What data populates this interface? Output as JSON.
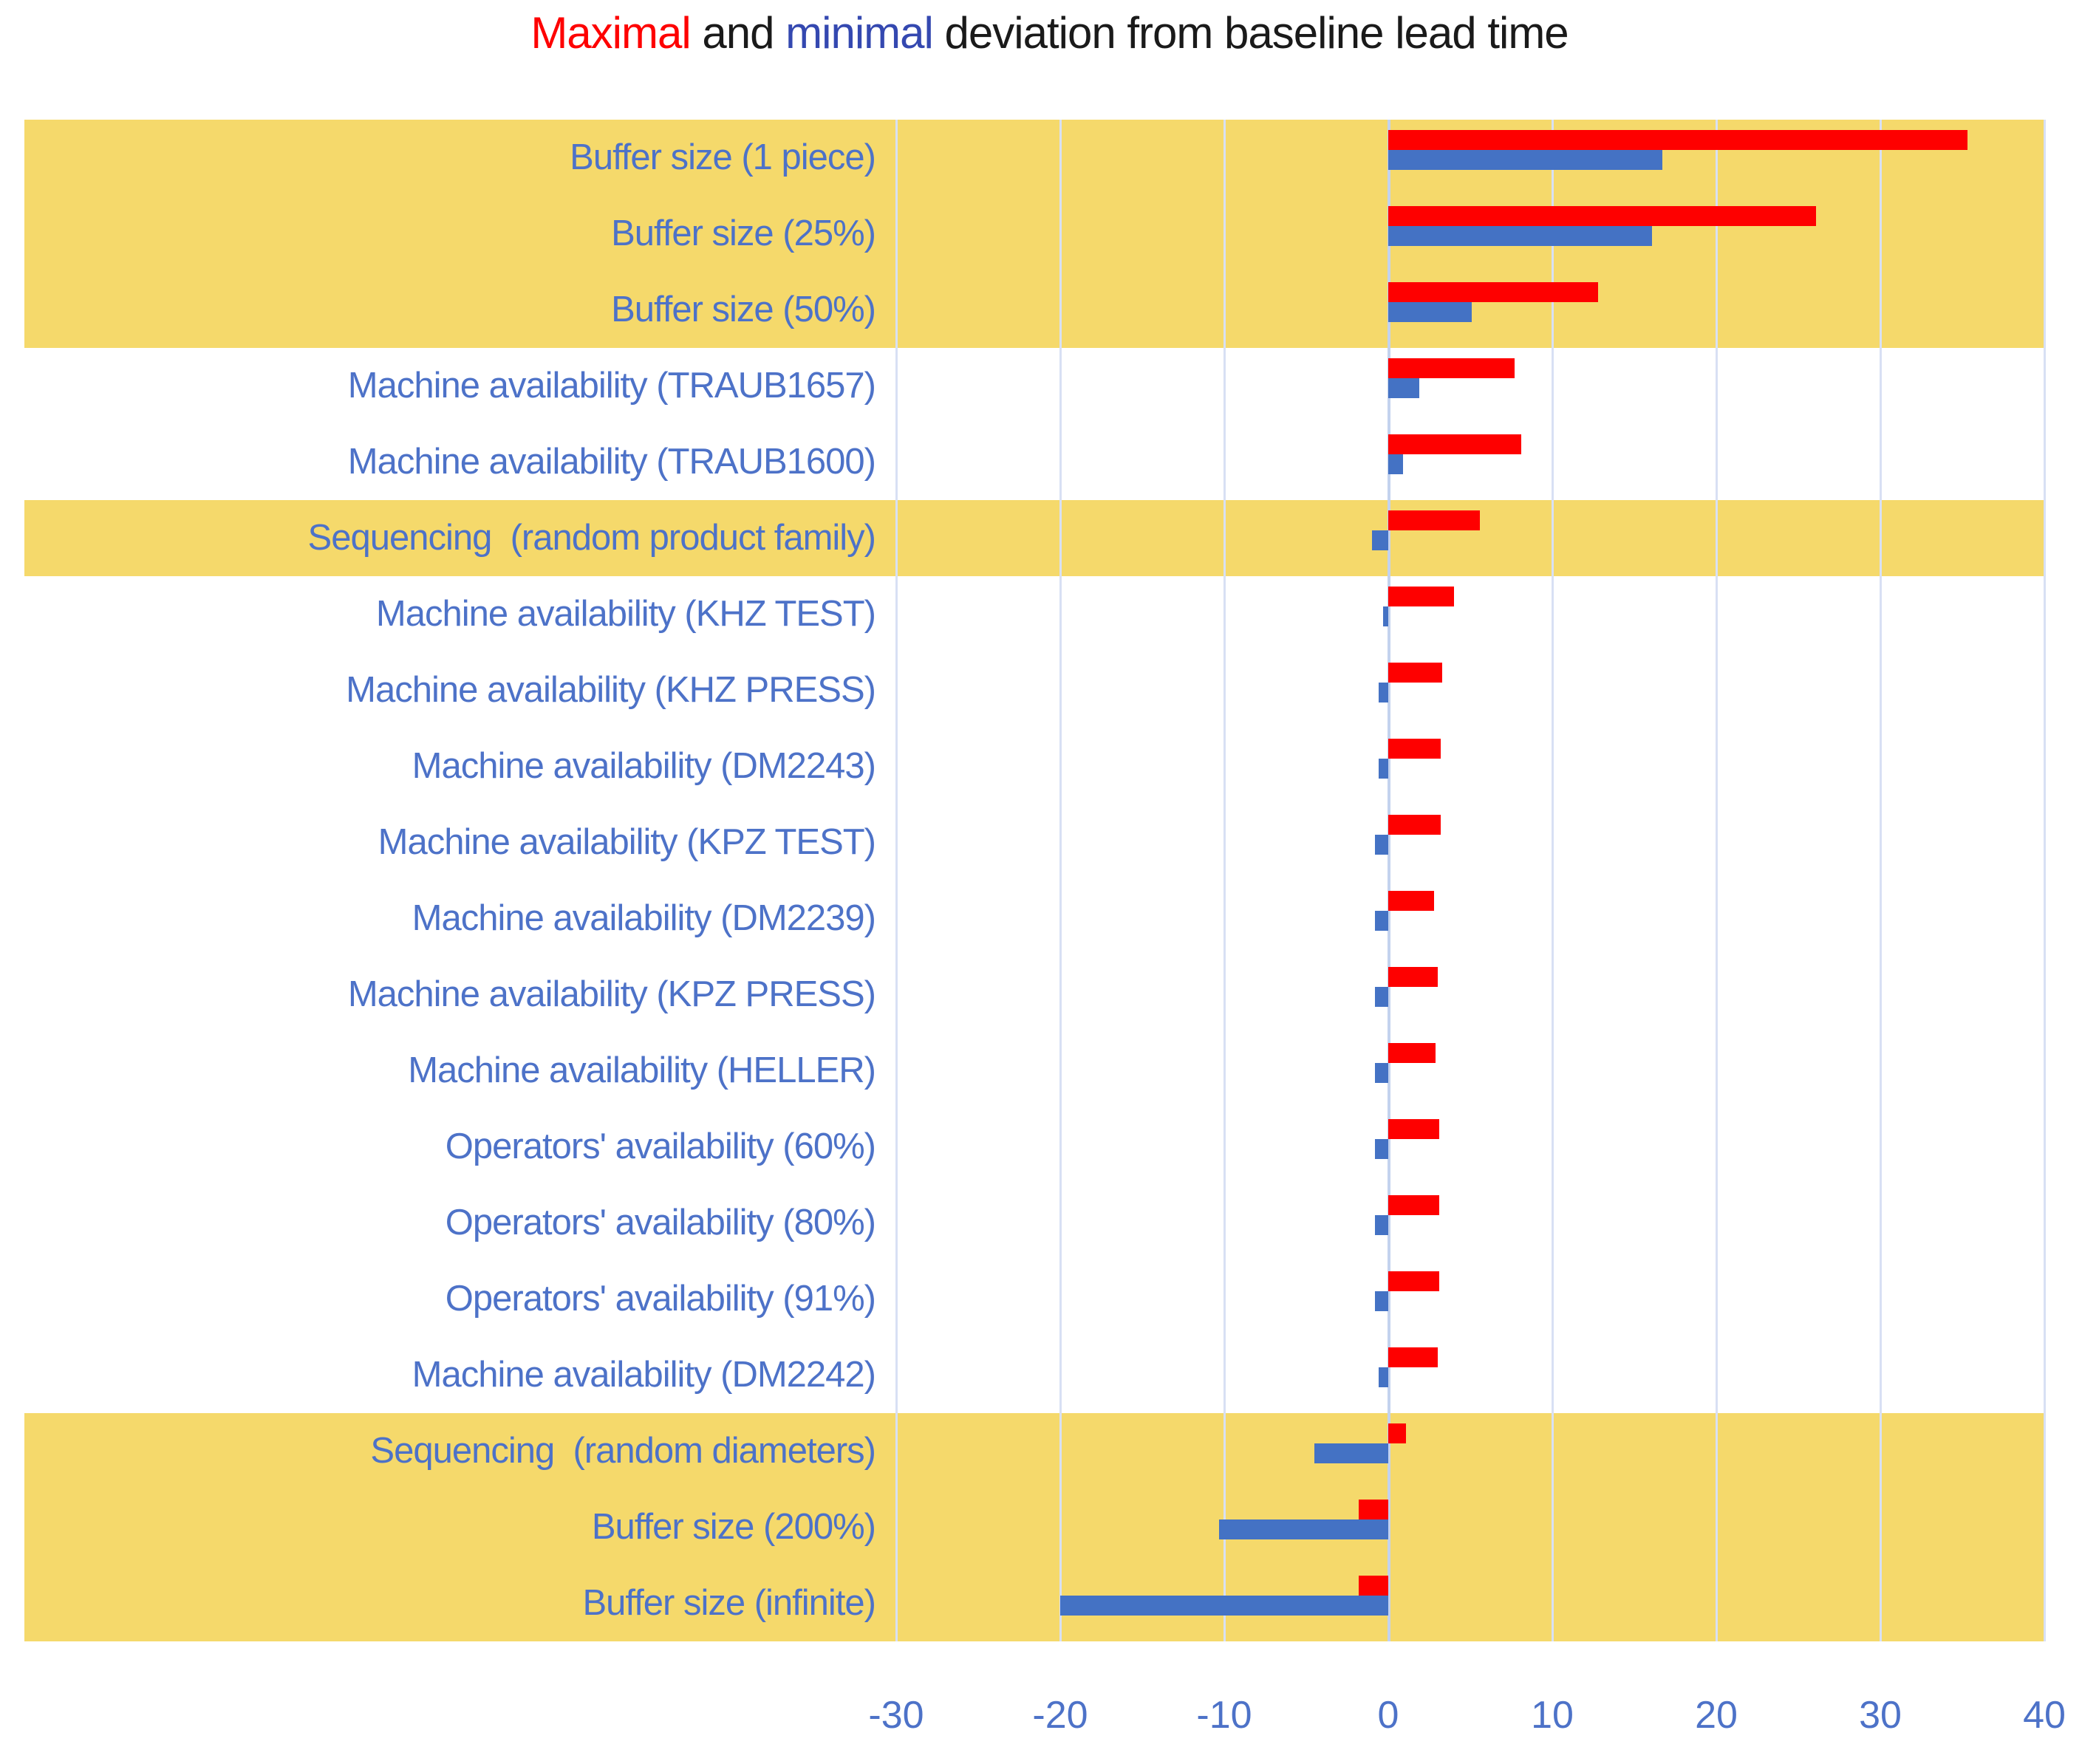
{
  "title": {
    "parts": [
      {
        "text": "Maximal",
        "color": "#fe0000"
      },
      {
        "text": " and ",
        "color": "#1a1a1a"
      },
      {
        "text": "minimal",
        "color": "#3448b0"
      },
      {
        "text": " deviation from baseline lead time",
        "color": "#1a1a1a"
      }
    ]
  },
  "colors": {
    "max_bar": "#fe0000",
    "min_bar": "#4472c4",
    "highlight_band": "#f5d96b",
    "gridline": "#d8e0f4",
    "zero_line": "#c3d2ee",
    "label_text": "#4d72c8",
    "tick_text": "#4d72c8"
  },
  "chart_data": {
    "type": "bar",
    "orientation": "horizontal",
    "title": "Maximal and minimal deviation from baseline lead time",
    "xlabel": "",
    "ylabel": "",
    "xlim": [
      -30,
      40
    ],
    "x_ticks": [
      -30,
      -20,
      -10,
      0,
      10,
      20,
      30,
      40
    ],
    "grid": "vertical",
    "legend": "encoded in title word colors (Maximal=red, minimal=blue)",
    "categories": [
      "Buffer size (1 piece)",
      "Buffer size (25%)",
      "Buffer size (50%)",
      "Machine availability (TRAUB1657)",
      "Machine availability (TRAUB1600)",
      "Sequencing  (random product family)",
      "Machine availability (KHZ TEST)",
      "Machine availability (KHZ PRESS)",
      "Machine availability (DM2243)",
      "Machine availability (KPZ TEST)",
      "Machine availability (DM2239)",
      "Machine availability (KPZ PRESS)",
      "Machine availability (HELLER)",
      "Operators' availability (60%)",
      "Operators' availability (80%)",
      "Operators' availability (91%)",
      "Machine availability (DM2242)",
      "Sequencing  (random diameters)",
      "Buffer size (200%)",
      "Buffer size (infinite)"
    ],
    "series": [
      {
        "name": "Maximal deviation",
        "color": "#fe0000",
        "values": [
          35.3,
          26.1,
          12.8,
          7.7,
          8.1,
          5.6,
          4.0,
          3.3,
          3.2,
          3.2,
          2.8,
          3.0,
          2.9,
          3.1,
          3.1,
          3.1,
          3.0,
          1.1,
          -1.8,
          -1.8
        ]
      },
      {
        "name": "Minimal deviation",
        "color": "#4472c4",
        "values": [
          16.7,
          16.1,
          5.1,
          1.9,
          0.9,
          -1.0,
          -0.3,
          -0.6,
          -0.6,
          -0.8,
          -0.8,
          -0.8,
          -0.8,
          -0.8,
          -0.8,
          -0.8,
          -0.6,
          -4.5,
          -10.3,
          -20.0
        ]
      }
    ],
    "highlighted_categories": [
      true,
      true,
      true,
      false,
      false,
      true,
      false,
      false,
      false,
      false,
      false,
      false,
      false,
      false,
      false,
      false,
      false,
      true,
      true,
      true
    ]
  }
}
